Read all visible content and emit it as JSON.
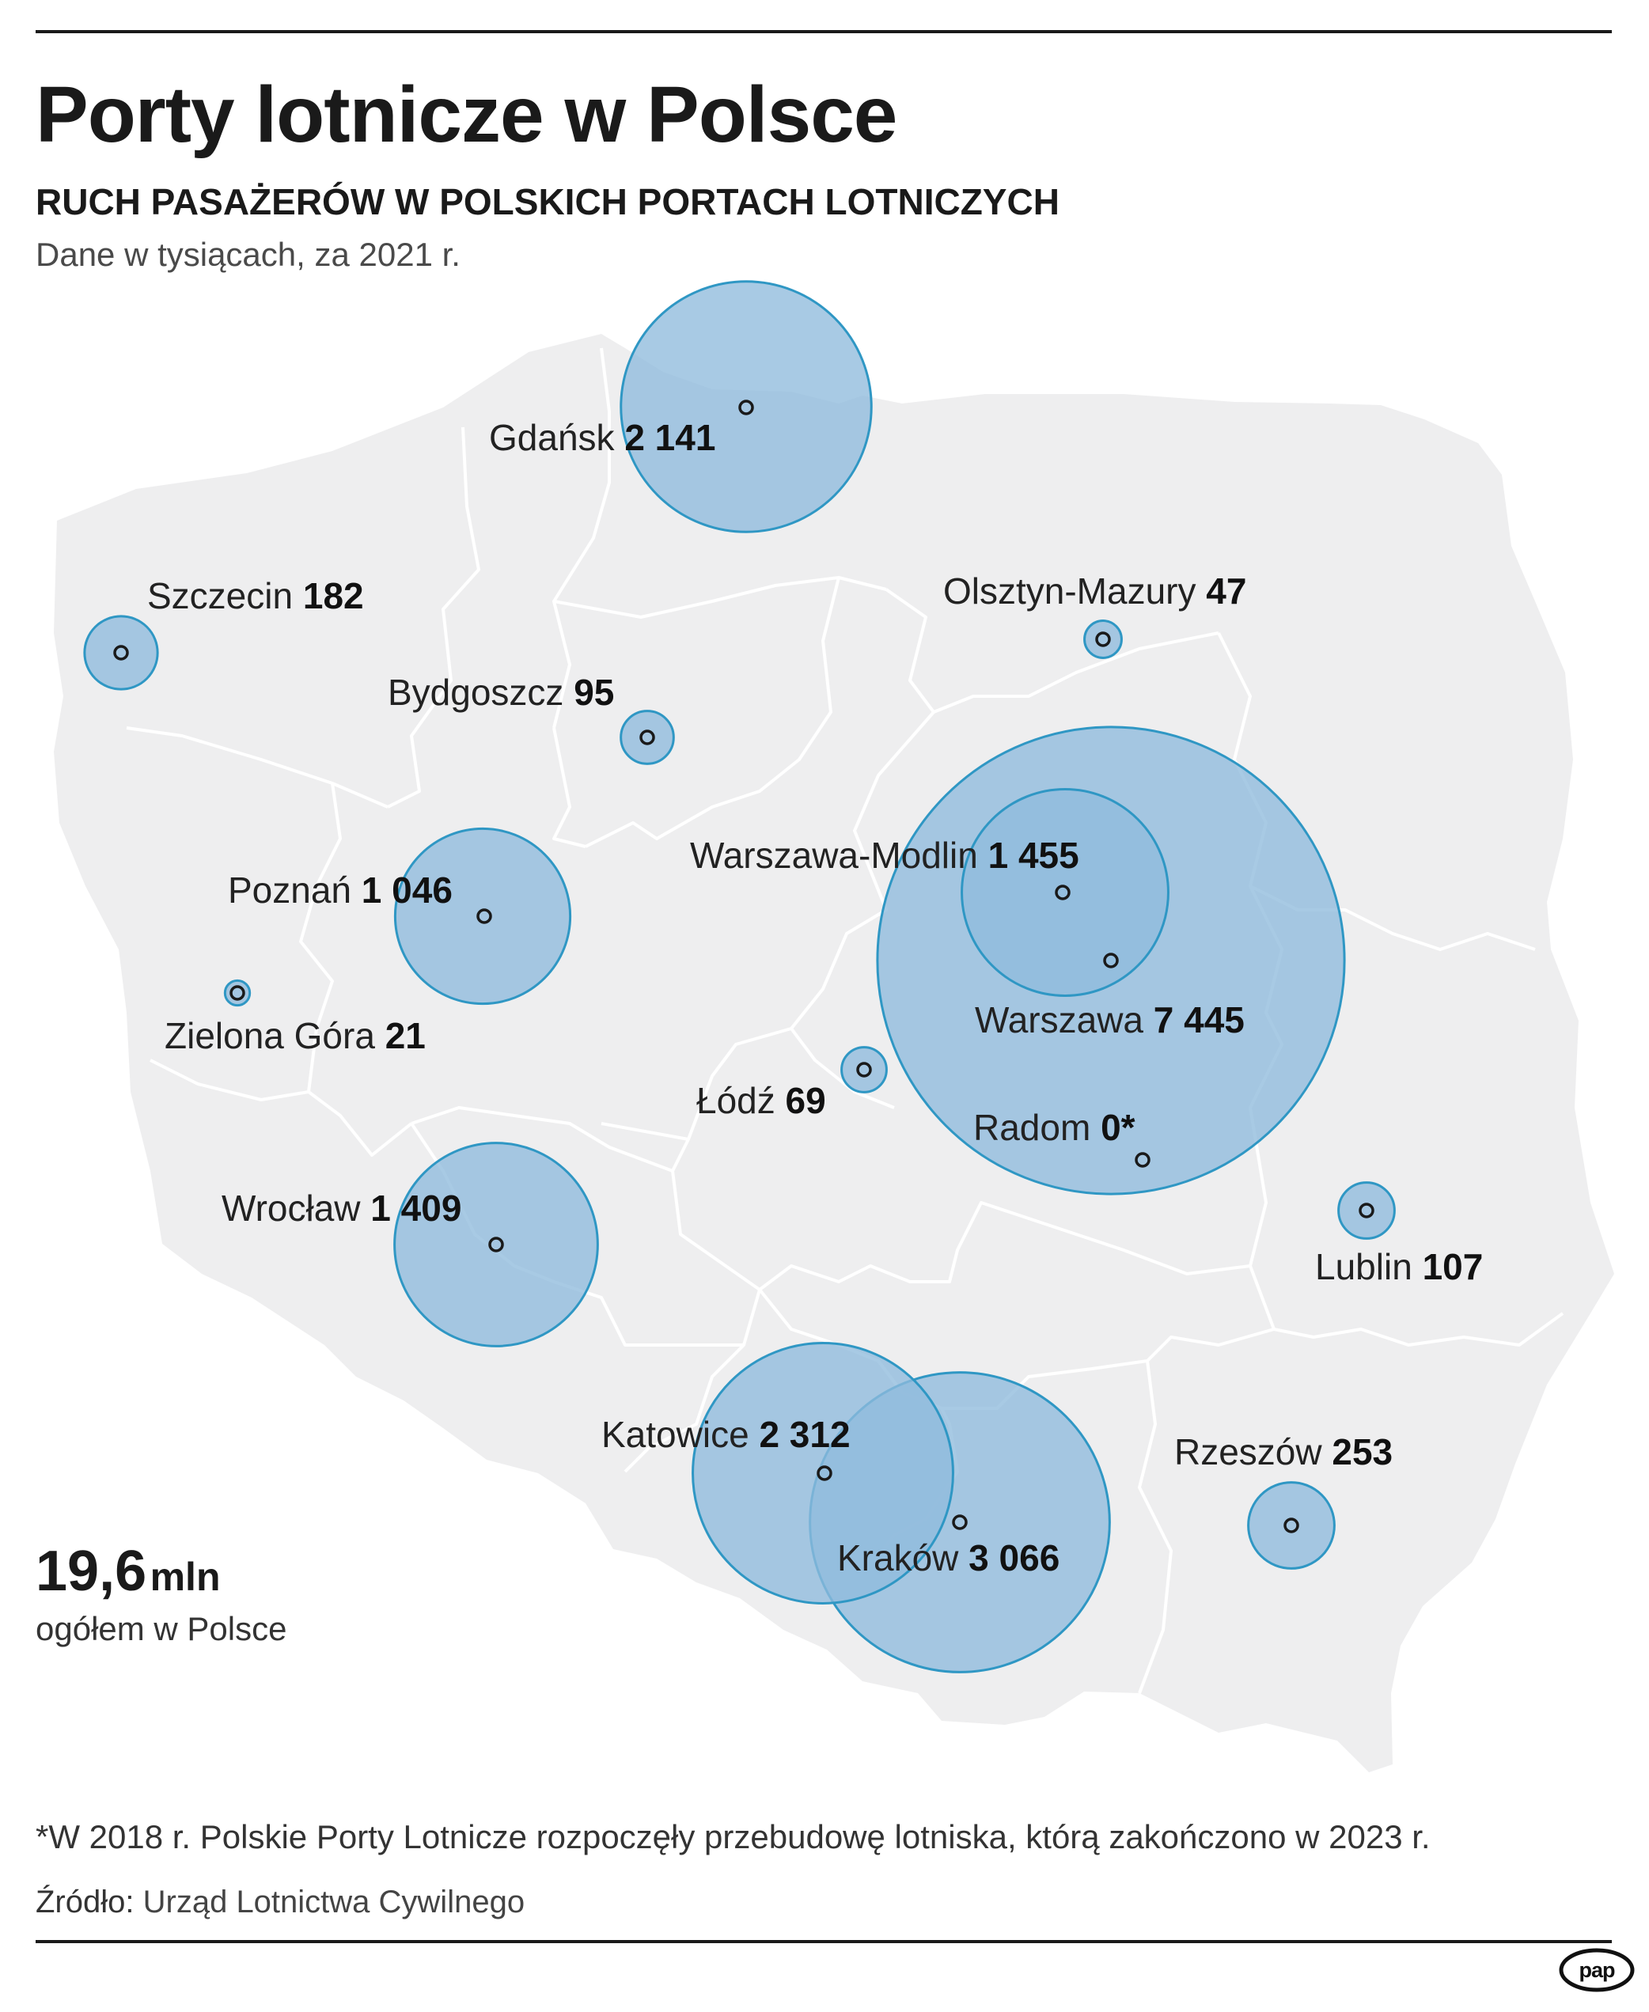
{
  "title": "Porty lotnicze w Polsce",
  "subtitle": "RUCH PASAŻERÓW W POLSKICH PORTACH LOTNICZYCH",
  "note": "Dane w tysiącach, za 2021 r.",
  "colors": {
    "circle_fill": "#8fbbdc",
    "circle_stroke": "#2f97c4",
    "land": "#eeeeef",
    "border": "#ffffff"
  },
  "airports": [
    {
      "id": "gdansk",
      "name": "Gdańsk",
      "value": "2 141",
      "passengers": 2141
    },
    {
      "id": "szczecin",
      "name": "Szczecin",
      "value": "182",
      "passengers": 182
    },
    {
      "id": "olsztyn",
      "name": "Olsztyn-Mazury",
      "value": "47",
      "passengers": 47
    },
    {
      "id": "bydgoszcz",
      "name": "Bydgoszcz",
      "value": "95",
      "passengers": 95
    },
    {
      "id": "modlin",
      "name": "Warszawa-Modlin",
      "value": "1 455",
      "passengers": 1455
    },
    {
      "id": "poznan",
      "name": "Poznań",
      "value": "1 046",
      "passengers": 1046
    },
    {
      "id": "zielona",
      "name": "Zielona Góra",
      "value": "21",
      "passengers": 21
    },
    {
      "id": "warszawa",
      "name": "Warszawa",
      "value": "7 445",
      "passengers": 7445
    },
    {
      "id": "lodz",
      "name": "Łódź",
      "value": "69",
      "passengers": 69
    },
    {
      "id": "radom",
      "name": "Radom",
      "value": "0*",
      "passengers": 0
    },
    {
      "id": "wroclaw",
      "name": "Wrocław",
      "value": "1 409",
      "passengers": 1409
    },
    {
      "id": "lublin",
      "name": "Lublin",
      "value": "107",
      "passengers": 107
    },
    {
      "id": "katowice",
      "name": "Katowice",
      "value": "2 312",
      "passengers": 2312
    },
    {
      "id": "rzeszow",
      "name": "Rzeszów",
      "value": "253",
      "passengers": 253
    },
    {
      "id": "krakow",
      "name": "Kraków",
      "value": "3 066",
      "passengers": 3066
    }
  ],
  "total": {
    "value": "19,6",
    "unit": "mln",
    "label": "ogółem w Polsce"
  },
  "footnote": "*W 2018 r. Polskie Porty Lotnicze rozpoczęły przebudowę lotniska, którą zakończono w 2023 r.",
  "source": {
    "label": "Źródło:",
    "value": "Urząd Lotnictwa Cywilnego"
  },
  "logo": "pap"
}
